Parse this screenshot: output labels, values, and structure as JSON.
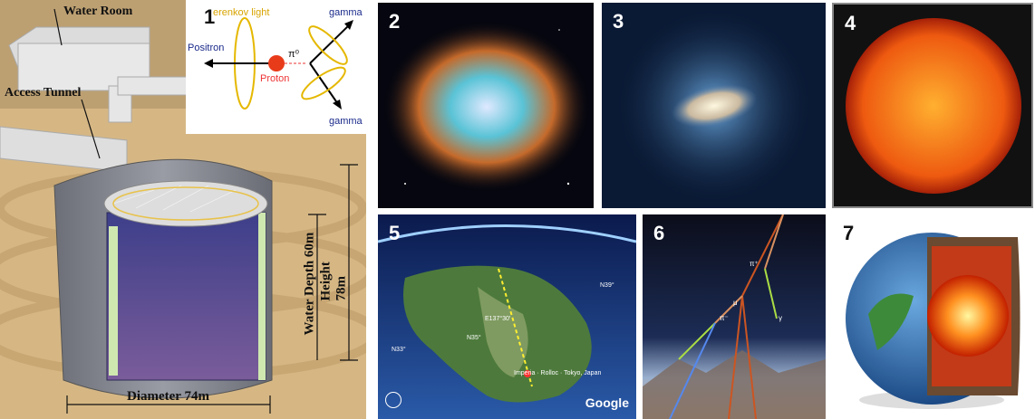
{
  "detector": {
    "water_room": "Water Room",
    "access_tunnel": "Access Tunnel",
    "height": "Height 78m",
    "water_depth": "Water Depth 60m",
    "diameter": "Diameter 74m"
  },
  "inset1": {
    "number": "1",
    "cerenkov": "erenkov light",
    "positron": "Positron",
    "proton": "Proton",
    "pi0": "π⁰",
    "gamma_top": "gamma",
    "gamma_bottom": "gamma"
  },
  "panels": {
    "n2": "2",
    "n3": "3",
    "n4": "4",
    "n5": "5",
    "n6": "6",
    "n7": "7"
  },
  "map5": {
    "route_label": "Imperia · Rolloc · Tokyo, Japan",
    "n33": "N33°",
    "n35": "N35°",
    "e137": "E137°30'",
    "n39": "N39°",
    "google": "Google"
  },
  "shower6": {
    "mu": "μ",
    "pi_plus": "π⁺",
    "pi_minus": "π⁻",
    "gamma": "γ"
  },
  "colors": {
    "sky_blue": "#1b3a78",
    "sun_orange": "#e8501a",
    "tan": "#c9a36b"
  }
}
